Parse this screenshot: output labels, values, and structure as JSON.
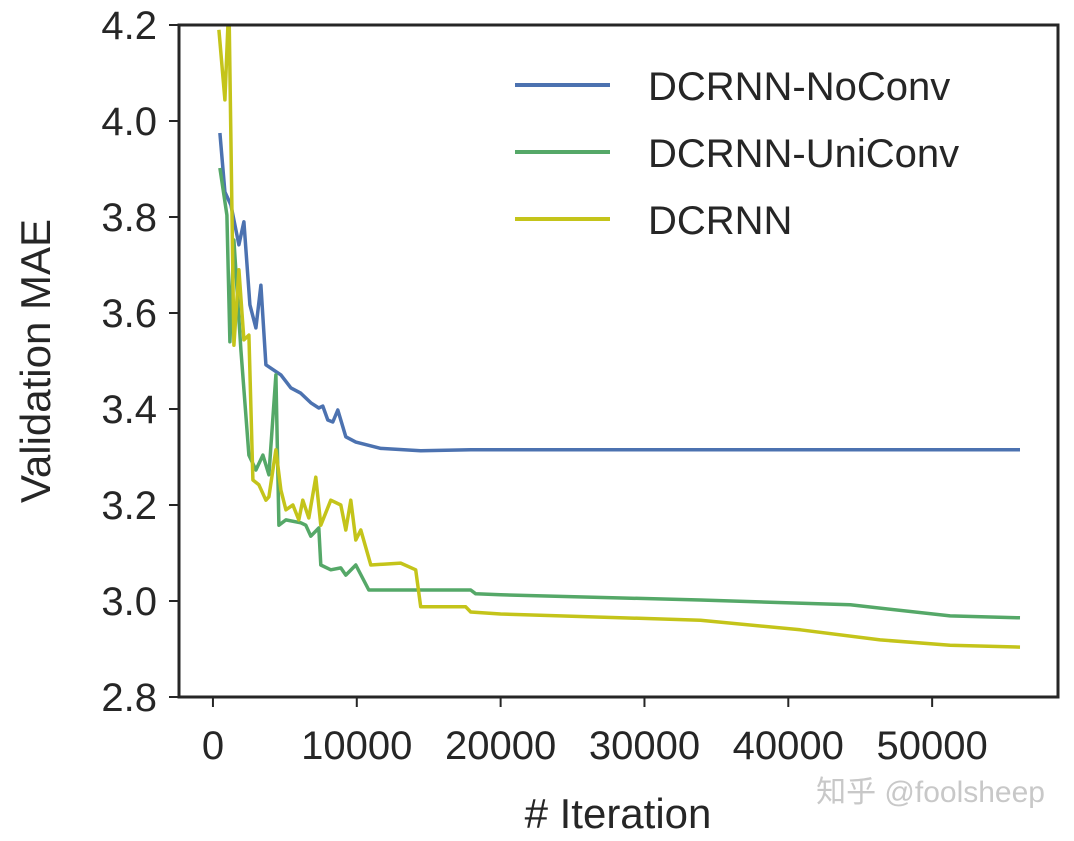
{
  "chart_data": {
    "type": "line",
    "title": "",
    "xlabel": "# Iteration",
    "ylabel": "Validation MAE",
    "xlim": [
      -2360,
      58750
    ],
    "ylim": [
      2.8,
      4.2
    ],
    "xticks": [
      0,
      10000,
      20000,
      30000,
      40000,
      50000
    ],
    "xtick_labels": [
      "0",
      "10000",
      "20000",
      "30000",
      "40000",
      "50000"
    ],
    "yticks": [
      2.8,
      3.0,
      3.2,
      3.4,
      3.6,
      3.8,
      4.0,
      4.2
    ],
    "ytick_labels": [
      "2.8",
      "3.0",
      "3.2",
      "3.4",
      "3.6",
      "3.8",
      "4.0",
      "4.2"
    ],
    "grid": false,
    "legend_position": "top-right",
    "series": [
      {
        "name": "DCRNN-NoConv",
        "color": "#4c72b0",
        "x": [
          486,
          833,
          1250,
          1806,
          2153,
          2569,
          2986,
          3333,
          3681,
          4722,
          5417,
          6111,
          6806,
          7361,
          7639,
          7986,
          8333,
          8681,
          8889,
          9236,
          9931,
          11667,
          14444,
          17917,
          56111
        ],
        "y": [
          3.975,
          3.852,
          3.825,
          3.742,
          3.79,
          3.617,
          3.569,
          3.658,
          3.492,
          3.471,
          3.444,
          3.433,
          3.413,
          3.402,
          3.406,
          3.377,
          3.373,
          3.398,
          3.377,
          3.342,
          3.331,
          3.318,
          3.313,
          3.315,
          3.315
        ]
      },
      {
        "name": "DCRNN-UniConv",
        "color": "#55a868",
        "x": [
          486,
          972,
          1181,
          1458,
          1944,
          2500,
          2986,
          3472,
          3889,
          4375,
          4583,
          5069,
          6111,
          6458,
          6806,
          7361,
          7500,
          8194,
          8889,
          9236,
          9931,
          10833,
          14444,
          17917,
          18264,
          20000,
          33889,
          44306,
          51250,
          56111
        ],
        "y": [
          3.902,
          3.804,
          3.54,
          3.752,
          3.523,
          3.304,
          3.273,
          3.304,
          3.263,
          3.471,
          3.158,
          3.169,
          3.163,
          3.158,
          3.135,
          3.152,
          3.075,
          3.065,
          3.069,
          3.054,
          3.075,
          3.023,
          3.023,
          3.023,
          3.015,
          3.013,
          3.002,
          2.992,
          2.969,
          2.965
        ]
      },
      {
        "name": "DCRNN",
        "color": "#c4c41a",
        "x": [
          417,
          833,
          1111,
          1458,
          1806,
          2153,
          2500,
          2778,
          3194,
          3681,
          3889,
          4375,
          4722,
          5069,
          5556,
          5972,
          6250,
          6667,
          7153,
          7500,
          8194,
          8889,
          9236,
          9583,
          9931,
          10278,
          10972,
          13056,
          14097,
          14444,
          17569,
          17917,
          20000,
          33889,
          40833,
          46389,
          51250,
          56111
        ],
        "y": [
          4.19,
          4.044,
          4.25,
          3.533,
          3.69,
          3.544,
          3.554,
          3.252,
          3.242,
          3.21,
          3.217,
          3.315,
          3.231,
          3.19,
          3.2,
          3.169,
          3.21,
          3.173,
          3.258,
          3.158,
          3.21,
          3.2,
          3.148,
          3.21,
          3.127,
          3.148,
          3.075,
          3.079,
          3.065,
          2.988,
          2.988,
          2.977,
          2.973,
          2.96,
          2.94,
          2.919,
          2.908,
          2.904
        ]
      }
    ]
  },
  "watermark": "知乎 @foolsheep"
}
